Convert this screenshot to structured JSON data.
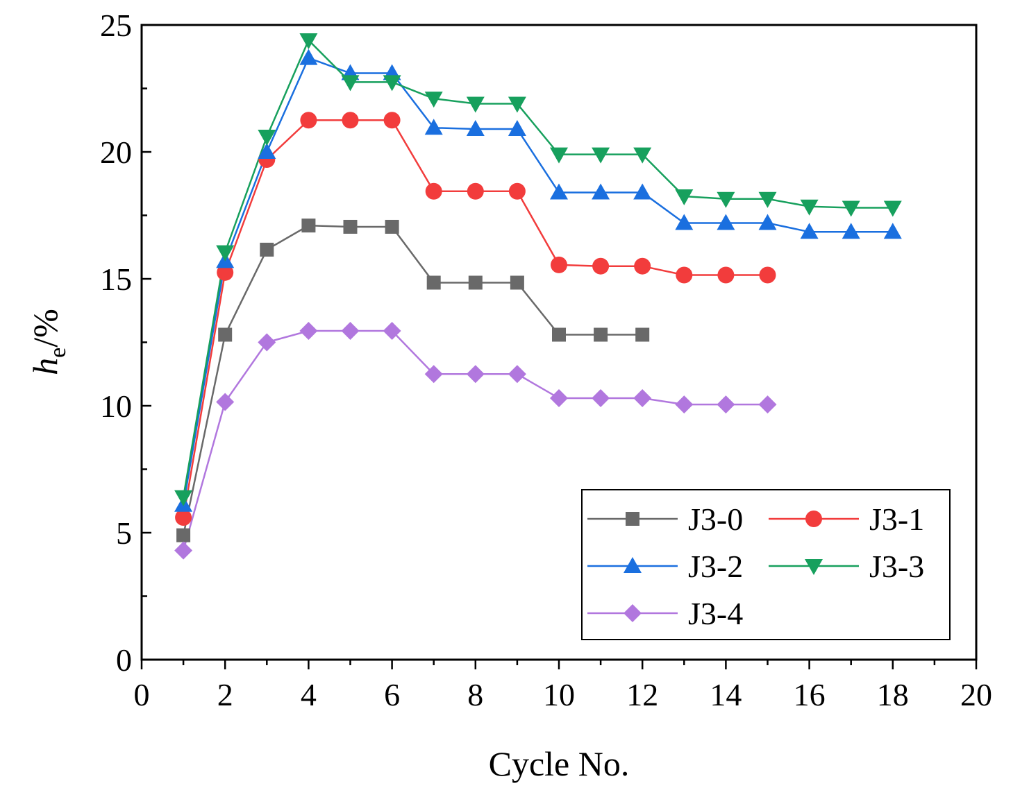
{
  "chart_data": {
    "type": "line",
    "title": "",
    "xlabel": "Cycle No.",
    "ylabel_main": "h",
    "ylabel_sub": "e",
    "ylabel_suffix": "/%",
    "xlim": [
      0,
      20
    ],
    "ylim": [
      0,
      25
    ],
    "xticks": [
      0,
      2,
      4,
      6,
      8,
      10,
      12,
      14,
      16,
      18,
      20
    ],
    "yticks": [
      0,
      5,
      10,
      15,
      20,
      25
    ],
    "legend_position": "bottom-right",
    "grid": false,
    "series": [
      {
        "name": "J3-0",
        "color": "#696969",
        "marker": "square",
        "x": [
          1,
          2,
          3,
          4,
          5,
          6,
          7,
          8,
          9,
          10,
          11,
          12
        ],
        "y": [
          4.9,
          12.8,
          16.15,
          17.1,
          17.05,
          17.05,
          14.85,
          14.85,
          14.85,
          12.8,
          12.8,
          12.8
        ]
      },
      {
        "name": "J3-1",
        "color": "#f23c3c",
        "marker": "circle",
        "x": [
          1,
          2,
          3,
          4,
          5,
          6,
          7,
          8,
          9,
          10,
          11,
          12,
          13,
          14,
          15
        ],
        "y": [
          5.6,
          15.25,
          19.7,
          21.25,
          21.25,
          21.25,
          18.45,
          18.45,
          18.45,
          15.55,
          15.5,
          15.5,
          15.15,
          15.15,
          15.15
        ]
      },
      {
        "name": "J3-2",
        "color": "#1a6fdf",
        "marker": "triangle-up",
        "x": [
          1,
          2,
          3,
          4,
          5,
          6,
          7,
          8,
          9,
          10,
          11,
          12,
          13,
          14,
          15,
          16,
          17,
          18
        ],
        "y": [
          6.1,
          15.7,
          20.0,
          23.7,
          23.1,
          23.1,
          20.95,
          20.9,
          20.9,
          18.4,
          18.4,
          18.4,
          17.2,
          17.2,
          17.2,
          16.85,
          16.85,
          16.85
        ]
      },
      {
        "name": "J3-3",
        "color": "#17a05d",
        "marker": "triangle-down",
        "x": [
          1,
          2,
          3,
          4,
          5,
          6,
          7,
          8,
          9,
          10,
          11,
          12,
          13,
          14,
          15,
          16,
          17,
          18
        ],
        "y": [
          6.4,
          16.05,
          20.6,
          24.4,
          22.75,
          22.75,
          22.1,
          21.9,
          21.9,
          19.9,
          19.9,
          19.9,
          18.25,
          18.15,
          18.15,
          17.85,
          17.8,
          17.8
        ]
      },
      {
        "name": "J3-4",
        "color": "#b177de",
        "marker": "diamond",
        "x": [
          1,
          2,
          3,
          4,
          5,
          6,
          7,
          8,
          9,
          10,
          11,
          12,
          13,
          14,
          15
        ],
        "y": [
          4.3,
          10.15,
          12.5,
          12.95,
          12.95,
          12.95,
          11.25,
          11.25,
          11.25,
          10.3,
          10.3,
          10.3,
          10.05,
          10.05,
          10.05
        ]
      }
    ]
  }
}
